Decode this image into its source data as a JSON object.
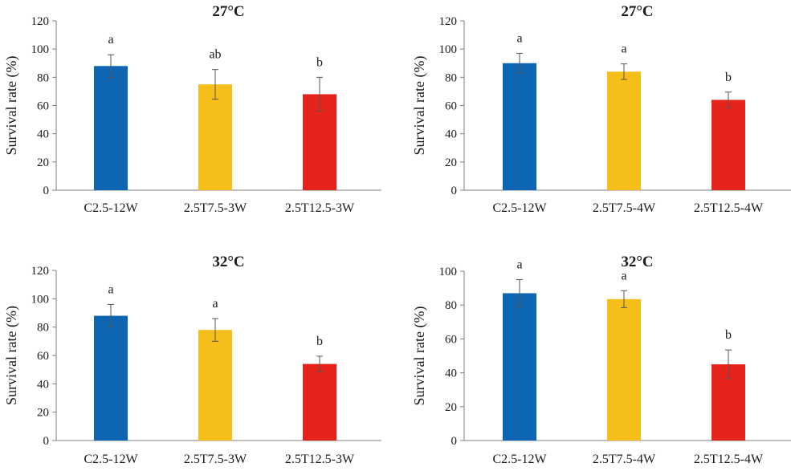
{
  "chart_data": [
    {
      "type": "bar",
      "title": "27°C",
      "ylabel": "Survival rate (%)",
      "ylim": [
        0,
        120
      ],
      "yticks": [
        0,
        20,
        40,
        60,
        80,
        100,
        120
      ],
      "categories": [
        "C2.5-12W",
        "2.5T7.5-3W",
        "2.5T12.5-3W"
      ],
      "values": [
        88,
        75,
        68
      ],
      "errors": [
        8,
        10.5,
        12
      ],
      "significance": [
        "a",
        "ab",
        "b"
      ],
      "colors": [
        "#0E66B2",
        "#F5BE18",
        "#E5231B"
      ]
    },
    {
      "type": "bar",
      "title": "27°C",
      "ylabel": "Survival rate (%)",
      "ylim": [
        0,
        120
      ],
      "yticks": [
        0,
        20,
        40,
        60,
        80,
        100,
        120
      ],
      "categories": [
        "C2.5-12W",
        "2.5T7.5-4W",
        "2.5T12.5-4W"
      ],
      "values": [
        90,
        84,
        64
      ],
      "errors": [
        7,
        5.5,
        5.5
      ],
      "significance": [
        "a",
        "a",
        "b"
      ],
      "colors": [
        "#0E66B2",
        "#F5BE18",
        "#E5231B"
      ]
    },
    {
      "type": "bar",
      "title": "32°C",
      "ylabel": "Survival rate (%)",
      "ylim": [
        0,
        120
      ],
      "yticks": [
        0,
        20,
        40,
        60,
        80,
        100,
        120
      ],
      "categories": [
        "C2.5-12W",
        "2.5T7.5-3W",
        "2.5T12.5-3W"
      ],
      "values": [
        88,
        78,
        54
      ],
      "errors": [
        8,
        8,
        5.5
      ],
      "significance": [
        "a",
        "a",
        "b"
      ],
      "colors": [
        "#0E66B2",
        "#F5BE18",
        "#E5231B"
      ]
    },
    {
      "type": "bar",
      "title": "32°C",
      "ylabel": "Survival rate (%)",
      "ylim": [
        0,
        100
      ],
      "yticks": [
        0,
        20,
        40,
        60,
        80,
        100
      ],
      "categories": [
        "C2.5-12W",
        "2.5T7.5-4W",
        "2.5T12.5-4W"
      ],
      "values": [
        87,
        83.5,
        45
      ],
      "errors": [
        8,
        5,
        8.5
      ],
      "significance": [
        "a",
        "a",
        "b"
      ],
      "colors": [
        "#0E66B2",
        "#F5BE18",
        "#E5231B"
      ]
    }
  ]
}
